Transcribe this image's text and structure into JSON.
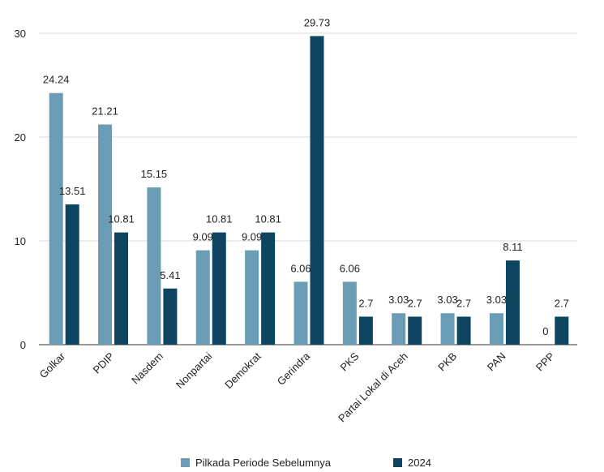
{
  "chart_data": {
    "type": "bar",
    "categories": [
      "Golkar",
      "PDIP",
      "Nasdem",
      "Nonpartai",
      "Demokrat",
      "Gerindra",
      "PKS",
      "Partai Lokal di Aceh",
      "PKB",
      "PAN",
      "PPP"
    ],
    "series": [
      {
        "name": "Pilkada Periode Sebelumnya",
        "color": "#6a9db5",
        "values": [
          24.24,
          21.21,
          15.15,
          9.09,
          9.09,
          6.06,
          6.06,
          3.03,
          3.03,
          3.03,
          0
        ],
        "labels": [
          "24.24",
          "21.21",
          "15.15",
          "9.09",
          "9.09",
          "6.06",
          "6.06",
          "3.03",
          "3.03",
          "3.03",
          "0"
        ]
      },
      {
        "name": "2024",
        "color": "#0d4561",
        "values": [
          13.51,
          10.81,
          5.41,
          10.81,
          10.81,
          29.73,
          2.7,
          2.7,
          2.7,
          8.11,
          2.7
        ],
        "labels": [
          "13.51",
          "10.81",
          "5.41",
          "10.81",
          "10.81",
          "29.73",
          "2.7",
          "2.7",
          "2.7",
          "8.11",
          "2.7"
        ]
      }
    ],
    "yticks": [
      "0",
      "10",
      "20",
      "30"
    ],
    "ylim": [
      0,
      30
    ],
    "grid": true,
    "legend": "bottom"
  }
}
